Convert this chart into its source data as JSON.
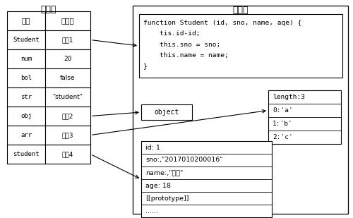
{
  "title_stack": "栈内存",
  "title_heap": "堆内存",
  "stack_headers": [
    "变量",
    "变量值"
  ],
  "stack_rows": [
    [
      "Student",
      "地址1"
    ],
    [
      "num",
      "20"
    ],
    [
      "bol",
      "false"
    ],
    [
      "str",
      "\"student\""
    ],
    [
      "obj",
      "地址2"
    ],
    [
      "arr",
      "地址3"
    ],
    [
      "student",
      "地址4"
    ]
  ],
  "func_lines": [
    "function Student (id, sno, name, aqe) {",
    "    tis.id-id;",
    "    this.sno = sno;",
    "    this.name = name;",
    "}"
  ],
  "object_text": "object",
  "array_lines": [
    "length:3",
    "0:'a'",
    "1:'b'",
    "2:'c'"
  ],
  "student_lines": [
    "id: 1",
    "sno:,\"2017010200016\"",
    "name:,\"小华\"",
    "age: 18",
    "[[prototype]]",
    "......"
  ],
  "bg_color": "#ffffff",
  "mono_font_size": 6.5,
  "label_font_size": 7.5,
  "title_font_size": 9
}
